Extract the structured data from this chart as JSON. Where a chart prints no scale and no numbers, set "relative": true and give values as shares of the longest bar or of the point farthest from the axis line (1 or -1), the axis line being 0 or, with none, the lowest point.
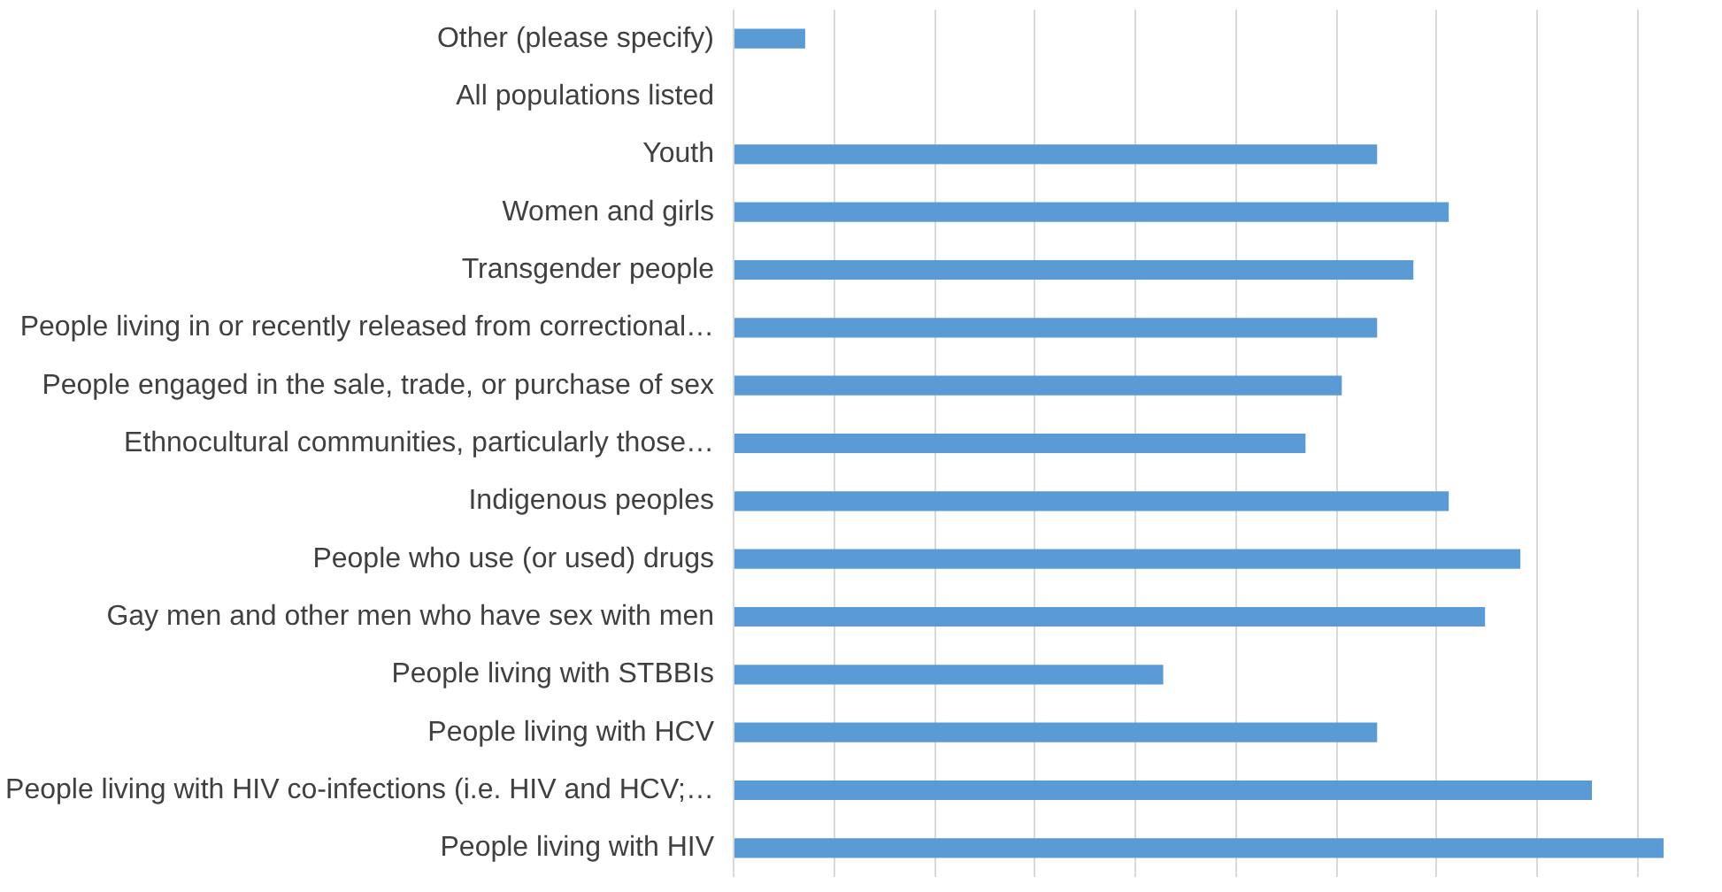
{
  "chart_data": {
    "type": "bar",
    "orientation": "horizontal",
    "relative": true,
    "grid": "x",
    "categories": [
      "Other (please specify)",
      "All populations listed",
      "Youth",
      "Women and girls",
      "Transgender people",
      "People living in or recently released from correctional…",
      "People engaged in the sale, trade, or purchase of sex",
      "Ethnocultural communities, particularly those…",
      "Indigenous peoples",
      "People who use (or used) drugs",
      "Gay men and other men who have sex with men",
      "People living with STBBIs",
      "People living with HCV",
      "People living with HIV co-infections (i.e. HIV and HCV;…",
      "People living with HIV"
    ],
    "values": [
      0.077,
      0,
      0.692,
      0.769,
      0.731,
      0.692,
      0.654,
      0.615,
      0.769,
      0.846,
      0.808,
      0.462,
      0.692,
      0.923,
      1
    ],
    "color": "#5b9bd5"
  }
}
